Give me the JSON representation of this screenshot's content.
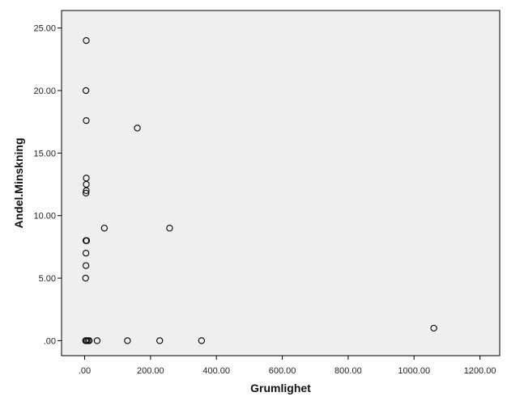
{
  "chart_data": {
    "type": "scatter",
    "xlabel": "Grumlighet",
    "ylabel": "Andel.Minskning",
    "xlim": [
      -70,
      1260
    ],
    "ylim": [
      -1.2,
      26.4
    ],
    "x_ticks": [
      0,
      200,
      400,
      600,
      800,
      1000,
      1200
    ],
    "x_tick_labels": [
      ".00",
      "200.00",
      "400.00",
      "600.00",
      "800.00",
      "1000.00",
      "1200.00"
    ],
    "y_ticks": [
      0,
      5,
      10,
      15,
      20,
      25
    ],
    "y_tick_labels": [
      ".00",
      "5.00",
      "10.00",
      "15.00",
      "20.00",
      "25.00"
    ],
    "grid": false,
    "colors": {
      "plot_background": "#efefef",
      "marker_stroke": "#000000",
      "frame": "#000000"
    },
    "series": [
      {
        "points": [
          [
            5,
            24
          ],
          [
            4,
            20
          ],
          [
            5,
            17.6
          ],
          [
            160,
            17
          ],
          [
            5,
            13
          ],
          [
            5,
            12.5
          ],
          [
            5,
            12
          ],
          [
            4,
            11.8
          ],
          [
            60,
            9
          ],
          [
            258,
            9
          ],
          [
            4,
            8
          ],
          [
            6,
            8
          ],
          [
            4,
            7
          ],
          [
            4,
            6
          ],
          [
            3,
            5
          ],
          [
            1060,
            1
          ],
          [
            3,
            0
          ],
          [
            6,
            0
          ],
          [
            10,
            0
          ],
          [
            14,
            0
          ],
          [
            38,
            0
          ],
          [
            130,
            0
          ],
          [
            228,
            0
          ],
          [
            355,
            0
          ]
        ]
      }
    ]
  }
}
